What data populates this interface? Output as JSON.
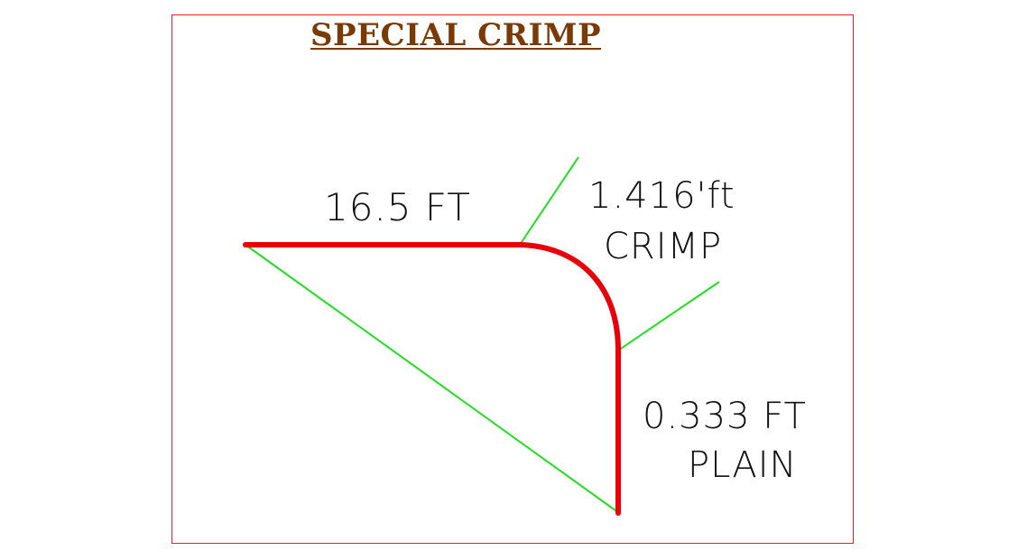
{
  "title": "SPECIAL CRIMP",
  "labels": {
    "straight_length": "16.5 FT",
    "crimp_length": "1.416'ft",
    "crimp_word": "CRIMP",
    "plain_length": "0.333 FT",
    "plain_word": "PLAIN"
  },
  "colors": {
    "pipe": "#e8000b",
    "leader": "#22dd22",
    "frame": "#e8202a",
    "title": "#7a3a06",
    "text": "#111111"
  }
}
